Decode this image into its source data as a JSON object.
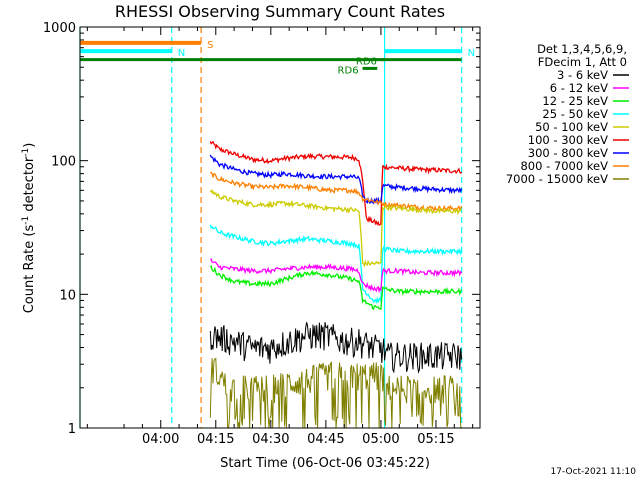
{
  "chart_data": {
    "type": "line",
    "title": "RHESSI Observing Summary Count Rates",
    "xlabel": "Start Time (06-Oct-06 03:45:22)",
    "ylabel_main": "Count Rate (s",
    "ylabel_sup1": "-1",
    "ylabel_mid": " detector",
    "ylabel_sup2": "-1",
    "ylabel_end": ")",
    "yscale": "log",
    "ylim": [
      1,
      1000
    ],
    "xlim_minutes": [
      -22,
      87
    ],
    "x_ticks": [
      {
        "label": "04:00",
        "minute": 0
      },
      {
        "label": "04:15",
        "minute": 15
      },
      {
        "label": "04:30",
        "minute": 30
      },
      {
        "label": "04:45",
        "minute": 45
      },
      {
        "label": "05:00",
        "minute": 60
      },
      {
        "label": "05:15",
        "minute": 75
      }
    ],
    "y_ticks": [
      {
        "label": "1",
        "value": 1
      },
      {
        "label": "10",
        "value": 10
      },
      {
        "label": "100",
        "value": 100
      },
      {
        "label": "1000",
        "value": 1000
      }
    ],
    "legend": {
      "header": [
        "Det 1,3,4,5,6,9,",
        "FDecim 1, Att 0"
      ],
      "entries": [
        {
          "label": "3 - 6 keV",
          "color": "#000000"
        },
        {
          "label": "6 - 12 keV",
          "color": "#ff00ff"
        },
        {
          "label": "12 - 25 keV",
          "color": "#00ee00"
        },
        {
          "label": "25 - 50 keV",
          "color": "#00ffff"
        },
        {
          "label": "50 - 100 keV",
          "color": "#cccc00"
        },
        {
          "label": "100 - 300 keV",
          "color": "#ee0000"
        },
        {
          "label": "300 - 800 keV",
          "color": "#0000ff"
        },
        {
          "label": "800 - 7000 keV",
          "color": "#ff8000"
        },
        {
          "label": "7000 - 15000 keV",
          "color": "#808000"
        }
      ]
    },
    "series": [
      {
        "name": "100 - 300 keV",
        "color": "#ee0000",
        "points": [
          [
            13.5,
            138
          ],
          [
            16,
            122
          ],
          [
            20,
            112
          ],
          [
            25,
            102
          ],
          [
            30,
            100
          ],
          [
            34,
            104
          ],
          [
            40,
            108
          ],
          [
            46,
            107
          ],
          [
            52,
            106
          ],
          [
            54,
            103
          ],
          [
            55,
            70
          ],
          [
            56,
            37
          ],
          [
            60,
            33
          ],
          [
            60.5,
            90
          ],
          [
            65,
            88
          ],
          [
            70,
            86
          ],
          [
            75,
            85
          ],
          [
            80,
            84
          ],
          [
            82,
            84
          ]
        ]
      },
      {
        "name": "300 - 800 keV",
        "color": "#0000ff",
        "points": [
          [
            13.5,
            108
          ],
          [
            16,
            94
          ],
          [
            20,
            86
          ],
          [
            25,
            80
          ],
          [
            30,
            78
          ],
          [
            34,
            80
          ],
          [
            40,
            77
          ],
          [
            46,
            76
          ],
          [
            52,
            76
          ],
          [
            54,
            74
          ],
          [
            55,
            55
          ],
          [
            56,
            50
          ],
          [
            60,
            50
          ],
          [
            60.5,
            65
          ],
          [
            65,
            63
          ],
          [
            70,
            62
          ],
          [
            75,
            61
          ],
          [
            80,
            60
          ],
          [
            82,
            60
          ]
        ]
      },
      {
        "name": "800 - 7000 keV",
        "color": "#ff8000",
        "points": [
          [
            13.5,
            80
          ],
          [
            16,
            73
          ],
          [
            20,
            68
          ],
          [
            25,
            64
          ],
          [
            30,
            63
          ],
          [
            34,
            65
          ],
          [
            40,
            63
          ],
          [
            46,
            60
          ],
          [
            52,
            60
          ],
          [
            54,
            58
          ],
          [
            55,
            52
          ],
          [
            58,
            50
          ],
          [
            60,
            48
          ],
          [
            62,
            47
          ],
          [
            66,
            46
          ],
          [
            70,
            45
          ],
          [
            75,
            44
          ],
          [
            82,
            44
          ]
        ]
      },
      {
        "name": "50 - 100 keV",
        "color": "#cccc00",
        "points": [
          [
            13.5,
            60
          ],
          [
            16,
            54
          ],
          [
            20,
            50
          ],
          [
            25,
            47
          ],
          [
            30,
            47
          ],
          [
            34,
            48
          ],
          [
            40,
            46
          ],
          [
            46,
            44
          ],
          [
            52,
            43
          ],
          [
            54,
            42
          ],
          [
            55,
            17
          ],
          [
            60,
            17
          ],
          [
            60.5,
            45
          ],
          [
            65,
            44
          ],
          [
            70,
            43
          ],
          [
            75,
            42
          ],
          [
            82,
            42
          ]
        ]
      },
      {
        "name": "25 - 50 keV",
        "color": "#00ffff",
        "points": [
          [
            13.5,
            33
          ],
          [
            16,
            29
          ],
          [
            20,
            27
          ],
          [
            25,
            25
          ],
          [
            30,
            24
          ],
          [
            34,
            25
          ],
          [
            40,
            26
          ],
          [
            46,
            25
          ],
          [
            52,
            24
          ],
          [
            54,
            23
          ],
          [
            55,
            11
          ],
          [
            58,
            9
          ],
          [
            60,
            9
          ],
          [
            60.5,
            22
          ],
          [
            65,
            21
          ],
          [
            70,
            21
          ],
          [
            75,
            21
          ],
          [
            82,
            21
          ]
        ]
      },
      {
        "name": "6 - 12 keV",
        "color": "#ff00ff",
        "points": [
          [
            13.5,
            18
          ],
          [
            16,
            16
          ],
          [
            20,
            15.5
          ],
          [
            25,
            15
          ],
          [
            30,
            15
          ],
          [
            34,
            15.5
          ],
          [
            40,
            16
          ],
          [
            46,
            16
          ],
          [
            52,
            15.5
          ],
          [
            54,
            15
          ],
          [
            55,
            12
          ],
          [
            58,
            11
          ],
          [
            60,
            11
          ],
          [
            60.5,
            15
          ],
          [
            65,
            15
          ],
          [
            70,
            14.5
          ],
          [
            75,
            14.5
          ],
          [
            82,
            14.5
          ]
        ]
      },
      {
        "name": "12 - 25 keV",
        "color": "#00ee00",
        "points": [
          [
            13.5,
            16
          ],
          [
            16,
            14
          ],
          [
            20,
            12.5
          ],
          [
            25,
            12
          ],
          [
            30,
            12
          ],
          [
            34,
            13
          ],
          [
            40,
            14.5
          ],
          [
            46,
            14
          ],
          [
            52,
            13
          ],
          [
            54,
            12.5
          ],
          [
            55,
            9
          ],
          [
            58,
            8
          ],
          [
            60,
            8
          ],
          [
            60.5,
            11
          ],
          [
            65,
            10.5
          ],
          [
            70,
            10.5
          ],
          [
            75,
            10.5
          ],
          [
            82,
            10.5
          ]
        ]
      },
      {
        "name": "3 - 6 keV",
        "color": "#000000",
        "points": [
          [
            13.5,
            5
          ],
          [
            20,
            4.5
          ],
          [
            25,
            4
          ],
          [
            30,
            4
          ],
          [
            35,
            4.5
          ],
          [
            40,
            5
          ],
          [
            45,
            5
          ],
          [
            50,
            4.5
          ],
          [
            54,
            4.5
          ],
          [
            58,
            4
          ],
          [
            60,
            4
          ],
          [
            62,
            3.5
          ],
          [
            70,
            3.5
          ],
          [
            75,
            3.5
          ],
          [
            82,
            3.5
          ]
        ]
      },
      {
        "name": "7000 - 15000 keV",
        "color": "#808000",
        "points": [
          [
            13.5,
            3
          ],
          [
            16,
            2.5
          ],
          [
            18,
            2
          ],
          [
            25,
            2
          ],
          [
            30,
            2
          ],
          [
            35,
            2.2
          ],
          [
            40,
            2.3
          ],
          [
            45,
            2.5
          ],
          [
            50,
            2.5
          ],
          [
            54,
            2.5
          ],
          [
            60,
            2.5
          ],
          [
            62,
            2
          ],
          [
            70,
            2
          ],
          [
            75,
            2
          ],
          [
            82,
            2
          ]
        ]
      }
    ],
    "markers": {
      "top_flags": [
        {
          "label": "S",
          "color": "#ff8000",
          "value": 760,
          "x_from": -22,
          "x_to": 11
        },
        {
          "label": "N",
          "color": "#00ffff",
          "value": 660,
          "x_from": -22,
          "x_to": 3
        },
        {
          "label": "N",
          "color": "#00ffff",
          "value": 660,
          "x_from": 61,
          "x_to": 82
        }
      ],
      "green_line": {
        "value": 570,
        "x_from": -22,
        "x_to": 82,
        "color": "#008000"
      },
      "rd_labels": [
        {
          "label": "RD6",
          "color": "#008000",
          "value": 490,
          "x_from": 55,
          "x_to": 59
        },
        {
          "label": "RD6",
          "color": "#008000",
          "value": 570,
          "x_from": 60,
          "x_to": 61
        }
      ],
      "vlines": [
        {
          "minute": -22,
          "color": "#00ffff",
          "style": "solid"
        },
        {
          "minute": 3,
          "color": "#00ffff",
          "style": "dashed"
        },
        {
          "minute": 11,
          "color": "#ff8000",
          "style": "dashed"
        },
        {
          "minute": 61,
          "color": "#00ffff",
          "style": "solid"
        },
        {
          "minute": 82,
          "color": "#00ffff",
          "style": "dashed"
        }
      ]
    }
  },
  "footer": {
    "timestamp": "17-Oct-2021 11:10"
  }
}
